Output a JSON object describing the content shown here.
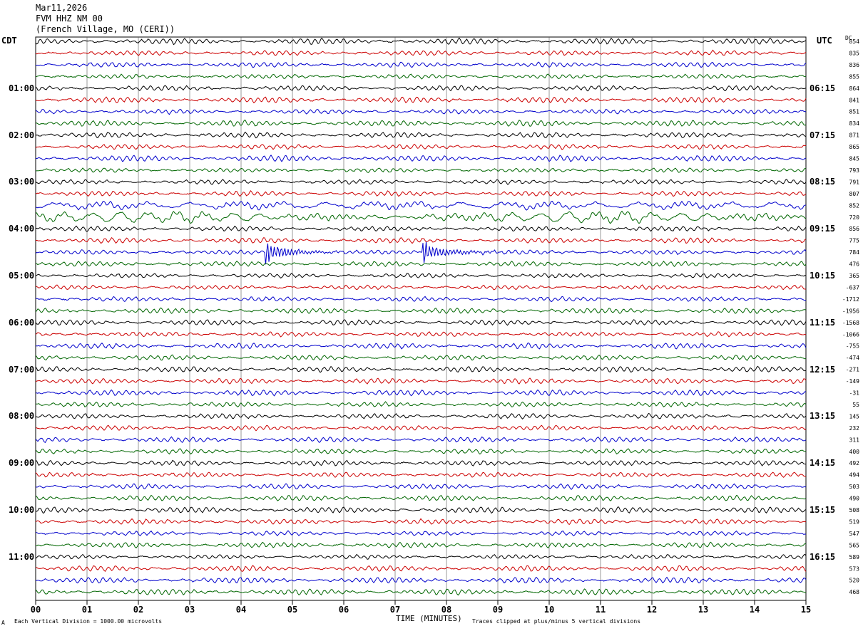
{
  "header": {
    "date": "Mar11,2026",
    "station": "FVM HHZ NM 00",
    "location": "(French Village, MO (CERI))"
  },
  "labels": {
    "left_timezone": "CDT",
    "right_timezone": "UTC",
    "dc_header": "DC"
  },
  "footer": {
    "scale_note": "Each Vertical Division = 1000.00 microvolts",
    "axis_title": "TIME (MINUTES)",
    "clip_note": "Traces clipped at plus/minus 5 vertical divisions",
    "corner_mark": "A"
  },
  "colors": {
    "trace_cycle": [
      "#000000",
      "#cc0000",
      "#0000cc",
      "#006600"
    ],
    "grid": "#000000"
  },
  "chart_data": {
    "type": "line",
    "title": "FVM HHZ NM 00",
    "xlabel": "TIME (MINUTES)",
    "xlim": [
      0,
      15
    ],
    "x_ticks": [
      "00",
      "01",
      "02",
      "03",
      "04",
      "05",
      "06",
      "07",
      "08",
      "09",
      "10",
      "11",
      "12",
      "13",
      "14",
      "15"
    ],
    "left_hour_labels": [
      "01:00",
      "02:00",
      "03:00",
      "04:00",
      "05:00",
      "06:00",
      "07:00",
      "08:00",
      "09:00",
      "10:00",
      "11:00"
    ],
    "right_hour_labels": [
      "06:15",
      "07:15",
      "08:15",
      "09:15",
      "10:15",
      "11:15",
      "12:15",
      "13:15",
      "14:15",
      "15:15",
      "16:15"
    ],
    "trace_count": 48,
    "dc_offsets": [
      854,
      835,
      836,
      855,
      864,
      841,
      851,
      834,
      871,
      865,
      845,
      793,
      791,
      807,
      852,
      720,
      856,
      775,
      784,
      476,
      365,
      -637,
      -1712,
      -1956,
      -1568,
      -1066,
      -755,
      -474,
      -271,
      -149,
      -31,
      55,
      145,
      232,
      311,
      400,
      492,
      494,
      503,
      490,
      508,
      519,
      547,
      565,
      589,
      573,
      520,
      468
    ],
    "events": [
      {
        "trace": 18,
        "minute": 4.5,
        "label": ""
      },
      {
        "trace": 18,
        "minute": 7.55,
        "label": ""
      }
    ]
  }
}
